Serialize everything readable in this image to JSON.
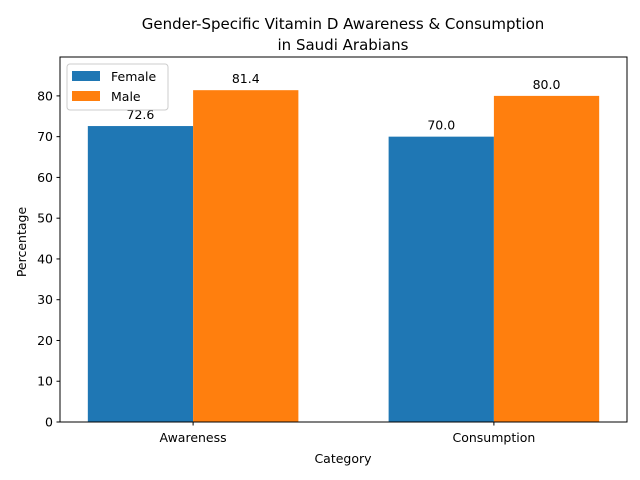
{
  "chart_data": {
    "type": "bar",
    "title_line1": "Gender-Specific Vitamin D Awareness & Consumption",
    "title_line2": "in Saudi Arabians",
    "xlabel": "Category",
    "ylabel": "Percentage",
    "categories": [
      "Awareness",
      "Consumption"
    ],
    "series": [
      {
        "name": "Female",
        "values": [
          72.6,
          70.0
        ],
        "labels": [
          "72.6",
          "70.0"
        ],
        "color": "#1f77b4"
      },
      {
        "name": "Male",
        "values": [
          81.4,
          80.0
        ],
        "labels": [
          "81.4",
          "80.0"
        ],
        "color": "#ff7f0e"
      }
    ],
    "ylim": [
      0,
      89.54
    ],
    "yticks": [
      0,
      10,
      20,
      30,
      40,
      50,
      60,
      70,
      80
    ],
    "ytick_labels": [
      "0",
      "10",
      "20",
      "30",
      "40",
      "50",
      "60",
      "70",
      "80"
    ],
    "legend_placement": "top-left",
    "grid": false
  }
}
